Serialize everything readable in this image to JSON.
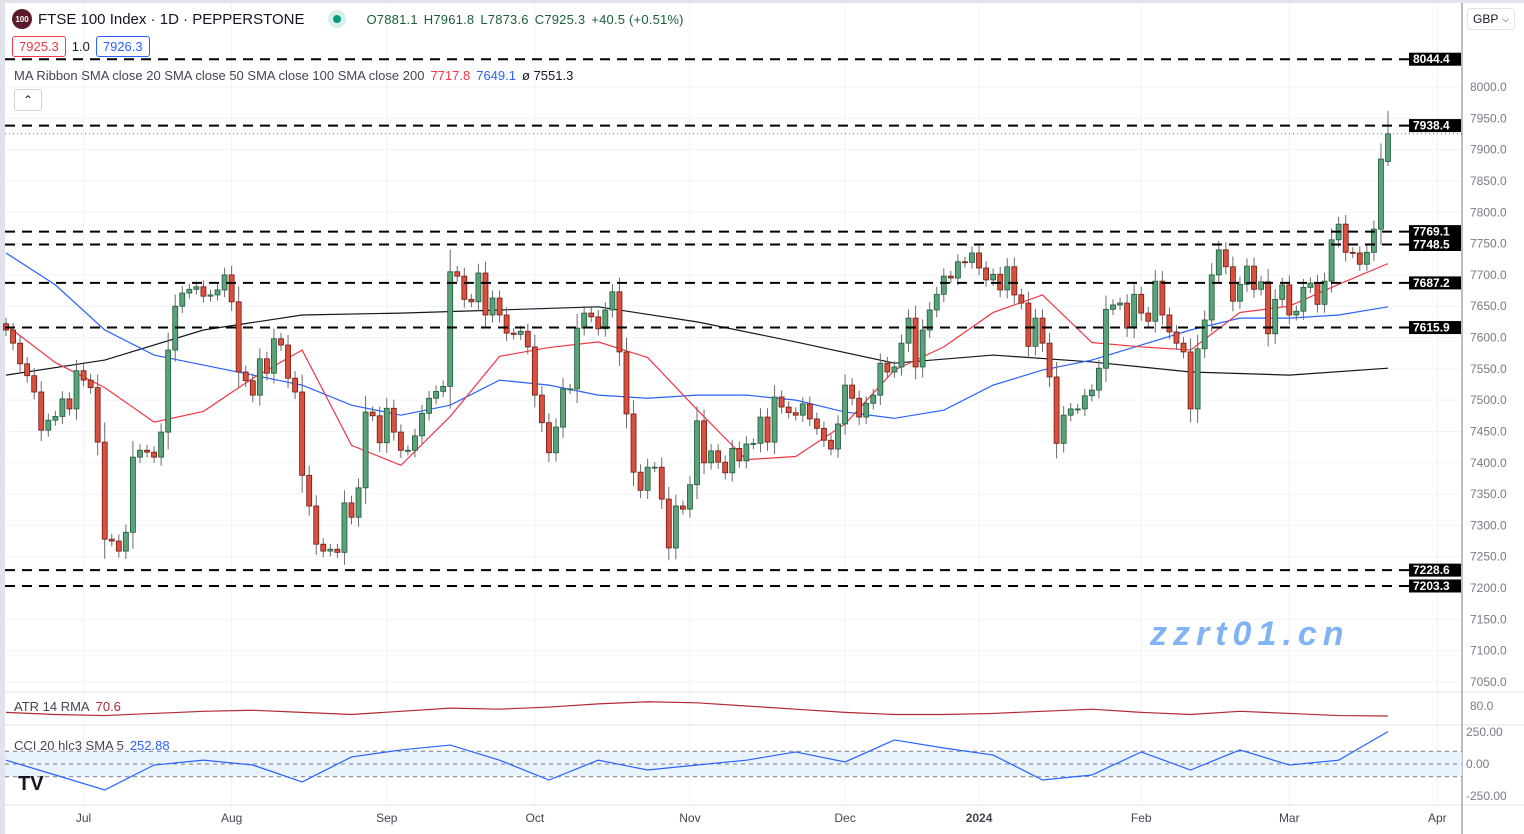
{
  "header": {
    "logo_text": "100",
    "title": "FTSE 100 Index · 1D · PEPPERSTONE",
    "open": "O7881.1",
    "high": "H7961.8",
    "low": "L7873.6",
    "close": "C7925.3",
    "change": "+40.5 (+0.51%)",
    "bid": "7925.3",
    "spread": "1.0",
    "ask": "7926.3"
  },
  "ma_legend": {
    "label": "MA Ribbon SMA close 20 SMA close 50 SMA close 100 SMA close 200",
    "v1": "7717.8",
    "v2": "7649.1",
    "v3": "ø  7551.3"
  },
  "collapse_icon": "chevron-up",
  "currency": "GBP",
  "atr_legend": {
    "label": "ATR 14 RMA",
    "value": "70.6"
  },
  "cci_legend": {
    "label": "CCI 20 hlc3 SMA 5",
    "value": "252.88"
  },
  "watermark": "zzrt01.cn",
  "colors": {
    "up": "#5aa27a",
    "down": "#d9503f",
    "sma20": "#f23645",
    "sma50": "#2962ff",
    "sma200": "#131722",
    "atr": "#b22833",
    "cci": "#2962ff"
  },
  "chart_data": {
    "type": "candlestick",
    "symbol": "FTSE 100 Index",
    "interval": "1D",
    "ylim": [
      7000,
      8075
    ],
    "y_ticks": [
      "8000.0",
      "7950.0",
      "7900.0",
      "7850.0",
      "7800.0",
      "7750.0",
      "7700.0",
      "7650.0",
      "7600.0",
      "7550.0",
      "7500.0",
      "7450.0",
      "7400.0",
      "7350.0",
      "7300.0",
      "7250.0",
      "7200.0",
      "7150.0",
      "7100.0",
      "7050.0"
    ],
    "x_ticks": [
      "Jul",
      "Aug",
      "Sep",
      "Oct",
      "Nov",
      "Dec",
      "2024",
      "Feb",
      "Mar",
      "Apr"
    ],
    "grid": true,
    "close": [
      7612,
      7591,
      7558,
      7539,
      7513,
      7452,
      7468,
      7474,
      7502,
      7486,
      7547,
      7532,
      7520,
      7433,
      7278,
      7275,
      7259,
      7289,
      7409,
      7420,
      7417,
      7409,
      7449,
      7580,
      7650,
      7671,
      7677,
      7681,
      7666,
      7668,
      7676,
      7700,
      7657,
      7545,
      7531,
      7508,
      7566,
      7543,
      7598,
      7588,
      7535,
      7513,
      7380,
      7331,
      7270,
      7259,
      7262,
      7257,
      7336,
      7313,
      7360,
      7481,
      7475,
      7432,
      7487,
      7449,
      7420,
      7420,
      7443,
      7479,
      7503,
      7514,
      7522,
      7705,
      7698,
      7661,
      7657,
      7703,
      7636,
      7663,
      7636,
      7607,
      7605,
      7610,
      7585,
      7508,
      7464,
      7416,
      7457,
      7518,
      7518,
      7615,
      7639,
      7633,
      7614,
      7644,
      7673,
      7577,
      7478,
      7385,
      7356,
      7393,
      7393,
      7342,
      7264,
      7331,
      7326,
      7365,
      7467,
      7400,
      7419,
      7401,
      7384,
      7423,
      7403,
      7430,
      7431,
      7473,
      7433,
      7505,
      7489,
      7480,
      7476,
      7494,
      7470,
      7455,
      7436,
      7422,
      7462,
      7524,
      7503,
      7473,
      7495,
      7508,
      7559,
      7545,
      7553,
      7591,
      7631,
      7553,
      7612,
      7644,
      7669,
      7698,
      7695,
      7721,
      7720,
      7735,
      7711,
      7692,
      7701,
      7676,
      7713,
      7668,
      7655,
      7586,
      7631,
      7591,
      7537,
      7431,
      7476,
      7486,
      7486,
      7507,
      7516,
      7551,
      7645,
      7652,
      7655,
      7615,
      7669,
      7639,
      7626,
      7690,
      7636,
      7609,
      7591,
      7577,
      7486,
      7582,
      7628,
      7700,
      7740,
      7713,
      7658,
      7685,
      7714,
      7677,
      7689,
      7606,
      7661,
      7684,
      7636,
      7642,
      7680,
      7687,
      7653,
      7690,
      7756,
      7781,
      7736,
      7735,
      7717,
      7736,
      7773,
      7885,
      7925.3
    ],
    "last_candle": {
      "open": 7881.1,
      "high": 7961.8,
      "low": 7873.6,
      "close": 7925.3
    },
    "horizontal_levels": [
      8044.4,
      7938.4,
      7769.1,
      7748.5,
      7687.2,
      7615.9,
      7228.6,
      7203.3
    ],
    "horizontal_level_labels": [
      "8044.4",
      "7938.4",
      "7769.1",
      "7748.5",
      "7687.2",
      "7615.9",
      "7228.6",
      "7203.3"
    ],
    "sma20_every7": [
      7620,
      7560,
      7520,
      7465,
      7482,
      7535,
      7580,
      7428,
      7396,
      7474,
      7570,
      7584,
      7593,
      7568,
      7485,
      7405,
      7410,
      7462,
      7548,
      7585,
      7640,
      7668,
      7592,
      7585,
      7580,
      7640,
      7650,
      7685,
      7718
    ],
    "sma50_every7": [
      7735,
      7684,
      7612,
      7572,
      7556,
      7540,
      7524,
      7492,
      7476,
      7492,
      7532,
      7524,
      7508,
      7503,
      7508,
      7508,
      7500,
      7481,
      7471,
      7484,
      7524,
      7548,
      7564,
      7588,
      7612,
      7631,
      7631,
      7636,
      7649
    ],
    "sma200_every14": [
      7540,
      7564,
      7612,
      7636,
      7639,
      7644,
      7649,
      7625,
      7593,
      7559,
      7572,
      7561,
      7545,
      7540,
      7551
    ],
    "atr": {
      "label": "ATR 14 RMA",
      "tick": "80.0",
      "every7": [
        74,
        72,
        71,
        73,
        75,
        76,
        74,
        72,
        75,
        78,
        77,
        79,
        82,
        84,
        83,
        80,
        77,
        74,
        72,
        72,
        73,
        75,
        77,
        74,
        72,
        75,
        73,
        71,
        70.6
      ]
    },
    "cci": {
      "label": "CCI 20 hlc3 SMA 5",
      "ticks": [
        "250.00",
        "0.00",
        "-250.00"
      ],
      "band": [
        -100,
        100
      ],
      "every7": [
        30,
        -86,
        -203,
        -8,
        30,
        -8,
        -140,
        55,
        110,
        148,
        30,
        -125,
        30,
        -47,
        -8,
        30,
        94,
        16,
        188,
        125,
        70,
        -125,
        -86,
        94,
        -47,
        110,
        -8,
        30,
        252.88
      ]
    }
  }
}
